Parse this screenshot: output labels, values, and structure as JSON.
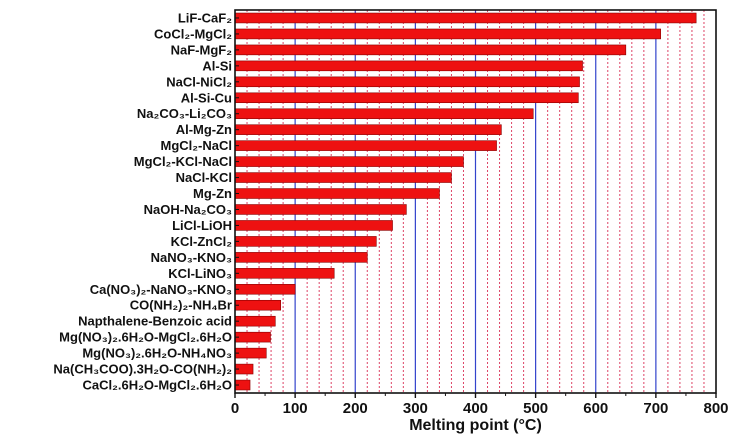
{
  "chart_data": {
    "type": "bar",
    "orientation": "horizontal",
    "categories": [
      "LiF-CaF₂",
      "CoCl₂-MgCl₂",
      "NaF-MgF₂",
      "Al-Si",
      "NaCl-NiCl₂",
      "Al-Si-Cu",
      "Na₂CO₃-Li₂CO₃",
      "Al-Mg-Zn",
      "MgCl₂-NaCl",
      "MgCl₂-KCl-NaCl",
      "NaCl-KCl",
      "Mg-Zn",
      "NaOH-Na₂CO₃",
      "LiCl-LiOH",
      "KCl-ZnCl₂",
      "NaNO₃-KNO₃",
      "KCl-LiNO₃",
      "Ca(NO₃)₂-NaNO₃-KNO₃",
      "CO(NH₂)₂-NH₄Br",
      "Napthalene-Benzoic acid",
      "Mg(NO₃)₂.6H₂O-MgCl₂.6H₂O",
      "Mg(NO₃)₂.6H₂O-NH₄NO₃",
      "Na(CH₃COO).3H₂O-CO(NH₂)₂",
      "CaCl₂.6H₂O-MgCl₂.6H₂O"
    ],
    "values": [
      767,
      708,
      650,
      578,
      573,
      571,
      496,
      443,
      435,
      380,
      360,
      340,
      285,
      262,
      235,
      220,
      165,
      100,
      76,
      67,
      59,
      52,
      30,
      25
    ],
    "xlabel": "Melting point (°C)",
    "ylabel": "",
    "title": "",
    "xlim": [
      0,
      800
    ],
    "xticks": [
      "0",
      "100",
      "200",
      "300",
      "400",
      "500",
      "600",
      "700",
      "800"
    ],
    "major_grid_color": "#3344cc",
    "minor_grid_color": "#dd4466",
    "bar_color": "#ee1111",
    "bar_edge_color": "#880000"
  }
}
